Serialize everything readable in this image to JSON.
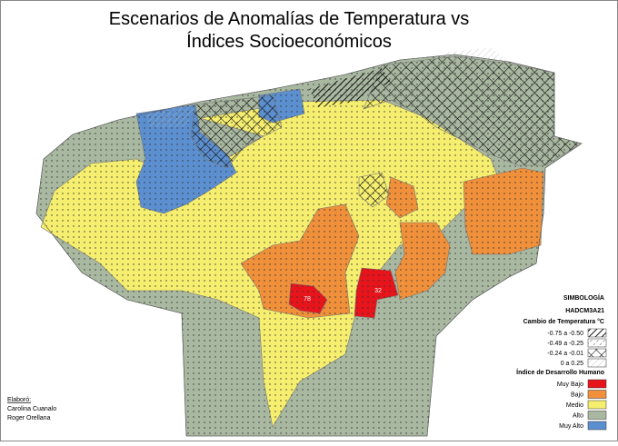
{
  "title": {
    "line1": "Escenarios de Anomalías de Temperatura vs",
    "line2": "Índices Socioeconómicos"
  },
  "map_labels": [
    "78",
    "32"
  ],
  "legend": {
    "heading": "SIMBOLOGÍA",
    "scenario": "HADCM3A21",
    "temperature_title": "Cambio de Temperatura °C",
    "temperature_classes": [
      "-0.75 a -0.50",
      "-0.49 a -0.25",
      "-0.24 a -0.01",
      "0 a 0.25"
    ],
    "idh_title": "Índice de Desarrollo Humano",
    "idh_classes": [
      {
        "label": "Muy Bajo",
        "color": "#e8141b"
      },
      {
        "label": "Bajo",
        "color": "#f0903a"
      },
      {
        "label": "Medio",
        "color": "#f5ee6e"
      },
      {
        "label": "Alto",
        "color": "#a9b8a0"
      },
      {
        "label": "Muy Alto",
        "color": "#5b8fcf"
      }
    ]
  },
  "credits": {
    "heading": "Elaboró:",
    "authors": [
      "Carolina Cuanalo",
      "Roger Orellana"
    ]
  }
}
